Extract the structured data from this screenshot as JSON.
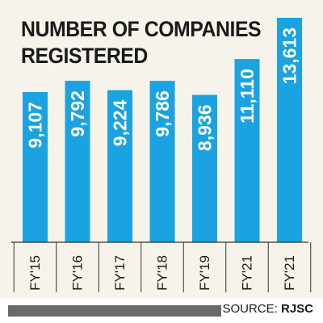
{
  "chart_data": {
    "type": "bar",
    "title": "NUMBER OF COMPANIES REGISTERED",
    "categories": [
      "FY'15",
      "FY'16",
      "FY'17",
      "FY'18",
      "FY'19",
      "FY'21",
      "FY'21"
    ],
    "values": [
      9107,
      9792,
      9224,
      9786,
      8936,
      11110,
      13613
    ],
    "value_labels": [
      "9,107",
      "9,792",
      "9,224",
      "9,786",
      "8,936",
      "11,110",
      "13,613"
    ],
    "xlabel": "",
    "ylabel": "",
    "ylim": [
      0,
      13613
    ],
    "grid": false,
    "bar_color": "#1aa3e0",
    "label_color": "#ffffff"
  },
  "source": {
    "prefix": "SOURCE:",
    "name": "RJSC"
  }
}
